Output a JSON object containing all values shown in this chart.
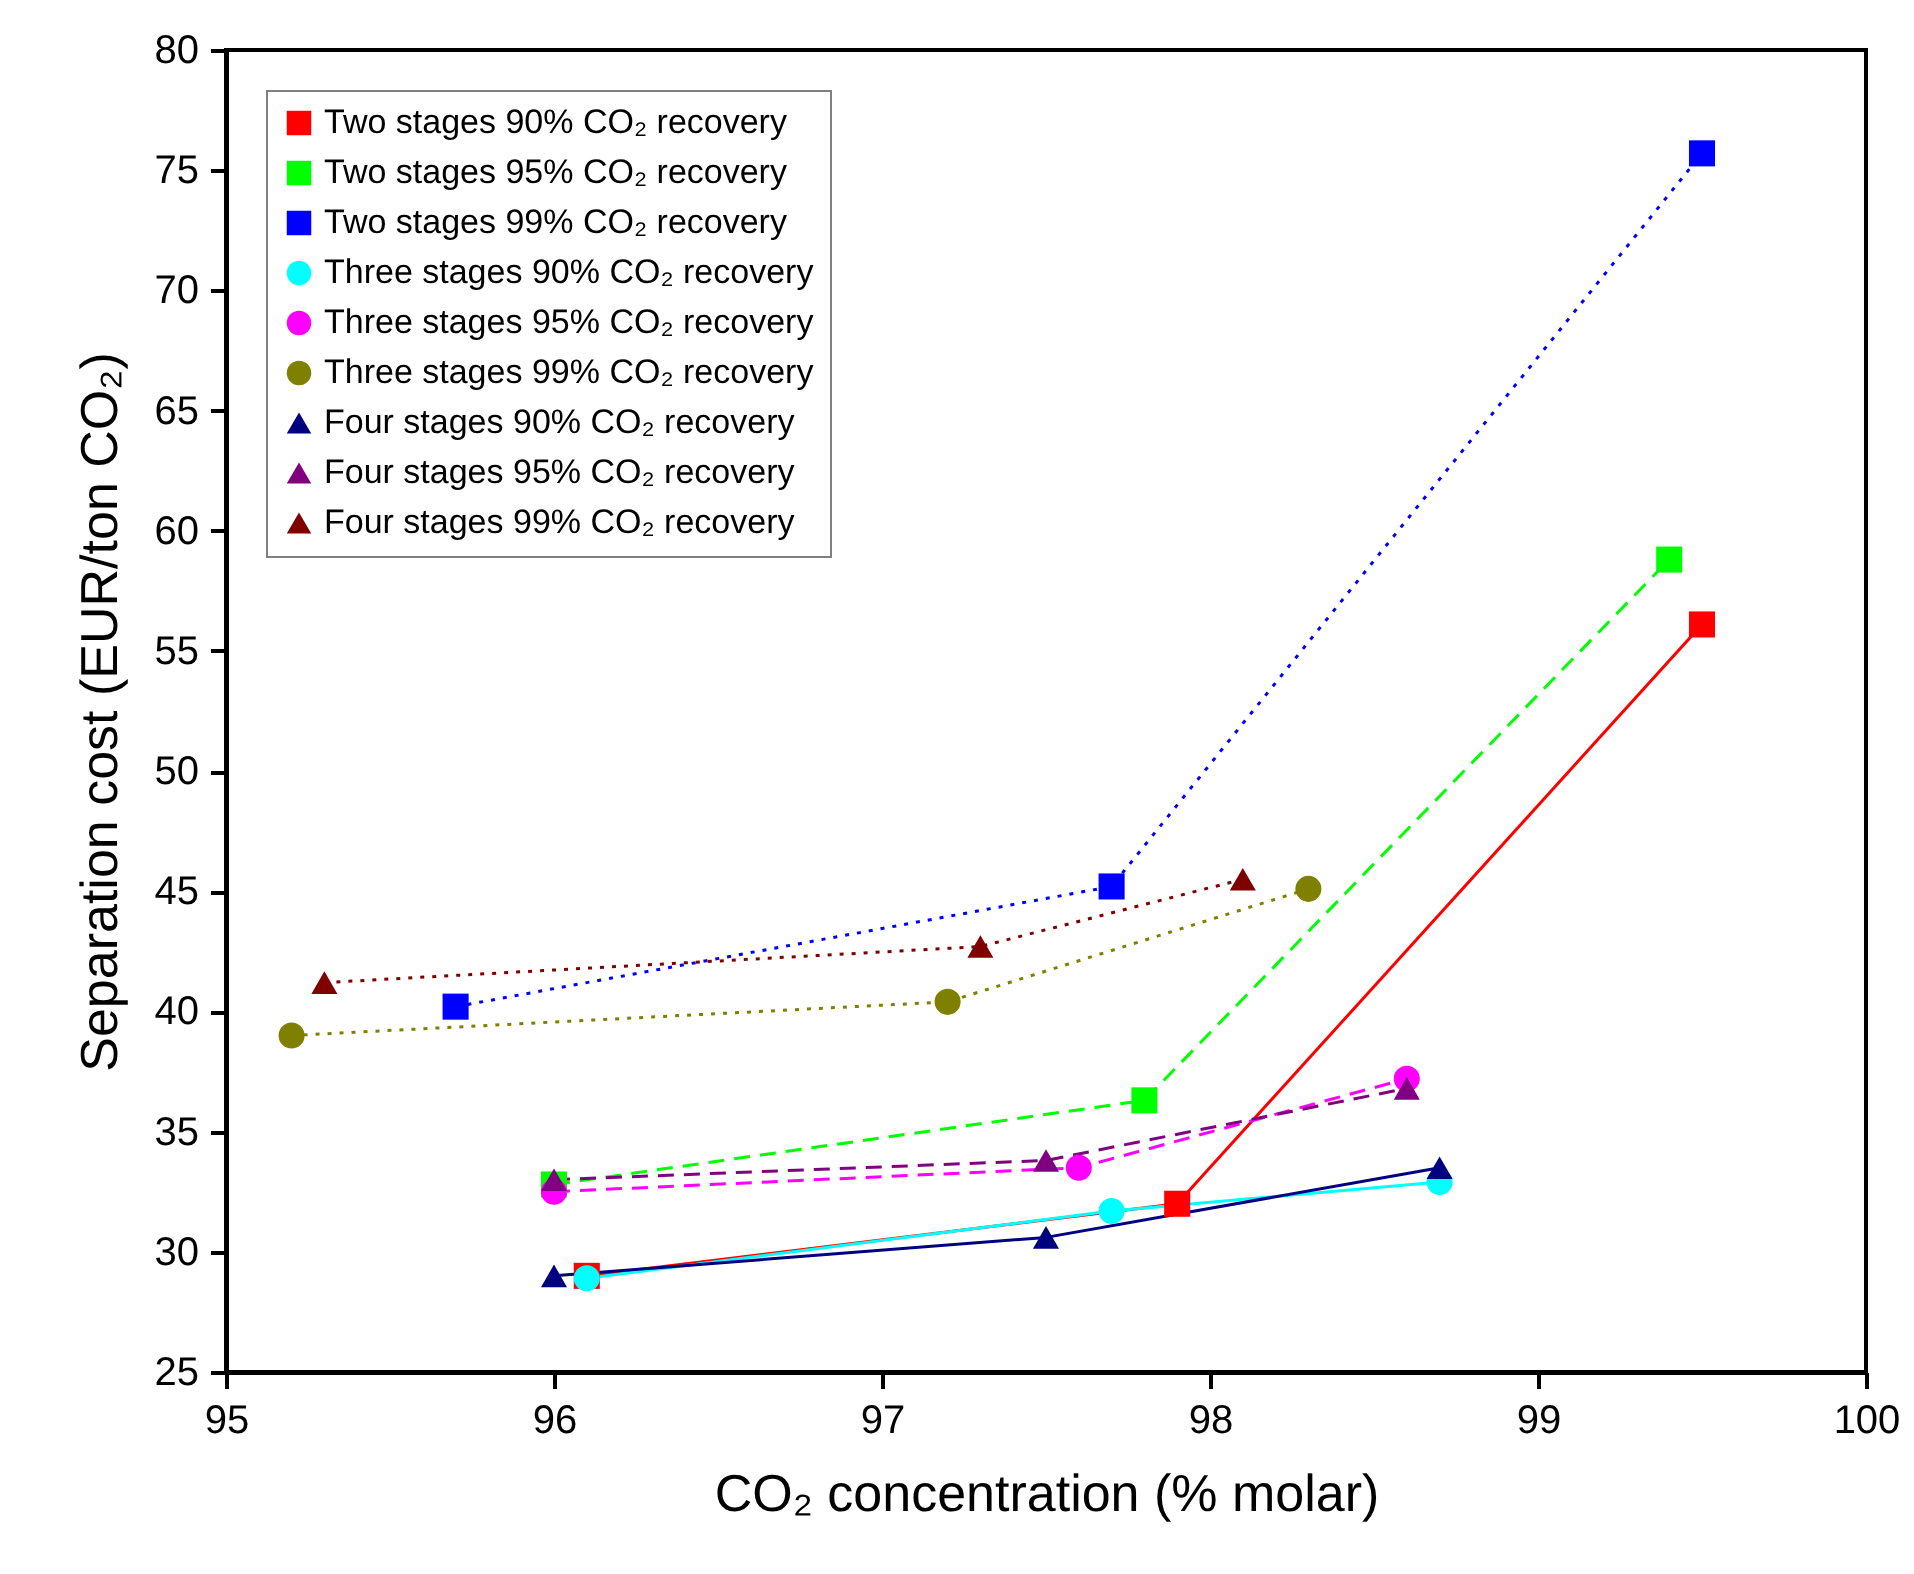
{
  "chart_data": {
    "type": "line",
    "xlabel": "CO₂ concentration (% molar)",
    "ylabel": "Separation cost (EUR/ton CO₂)",
    "xlim": [
      95,
      100
    ],
    "xticks": [
      95,
      96,
      97,
      98,
      99,
      100
    ],
    "ylim": [
      25,
      80
    ],
    "yticks": [
      25,
      30,
      35,
      40,
      45,
      50,
      55,
      60,
      65,
      70,
      75,
      80
    ],
    "grid": false,
    "legend": "top left",
    "series": [
      {
        "name": "Two stages 90% CO₂ recovery",
        "color": "#ff0000",
        "marker": "square",
        "line_style": "solid",
        "x": [
          96.1,
          97.9,
          99.5
        ],
        "values": [
          29,
          32,
          56.1
        ]
      },
      {
        "name": "Two stages 95% CO₂ recovery",
        "color": "#00ff00",
        "marker": "square",
        "line_style": "dashed",
        "x": [
          96.0,
          97.8,
          99.4
        ],
        "values": [
          32.8,
          36.3,
          58.8
        ]
      },
      {
        "name": "Two stages 99% CO₂ recovery",
        "color": "#0000ff",
        "marker": "square",
        "line_style": "dotted",
        "x": [
          95.7,
          97.7,
          99.5
        ],
        "values": [
          40.2,
          45.2,
          75.7
        ]
      },
      {
        "name": "Three stages 90% CO₂ recovery",
        "color": "#00ffff",
        "marker": "circle",
        "line_style": "solid",
        "x": [
          96.1,
          97.7,
          98.7
        ],
        "values": [
          28.9,
          31.7,
          32.9
        ]
      },
      {
        "name": "Three stages 95% CO₂ recovery",
        "color": "#ff00ff",
        "marker": "circle",
        "line_style": "dashed",
        "x": [
          96.0,
          97.6,
          98.6
        ],
        "values": [
          32.5,
          33.5,
          37.2
        ]
      },
      {
        "name": "Three stages 99% CO₂ recovery",
        "color": "#808000",
        "marker": "circle",
        "line_style": "dotted",
        "x": [
          95.2,
          97.2,
          98.3
        ],
        "values": [
          39,
          40.4,
          45.1
        ]
      },
      {
        "name": "Four stages 90% CO₂ recovery",
        "color": "#000080",
        "marker": "triangle",
        "line_style": "solid",
        "x": [
          96.0,
          97.5,
          98.7
        ],
        "values": [
          29,
          30.6,
          33.5
        ]
      },
      {
        "name": "Four stages 95% CO₂ recovery",
        "color": "#800080",
        "marker": "triangle",
        "line_style": "dashed",
        "x": [
          96.0,
          97.5,
          98.6
        ],
        "values": [
          33,
          33.8,
          36.8
        ]
      },
      {
        "name": "Four stages 99% CO₂ recovery",
        "color": "#800000",
        "marker": "triangle",
        "line_style": "dotted",
        "x": [
          95.3,
          97.3,
          98.1
        ],
        "values": [
          41.2,
          42.7,
          45.5
        ]
      }
    ]
  }
}
